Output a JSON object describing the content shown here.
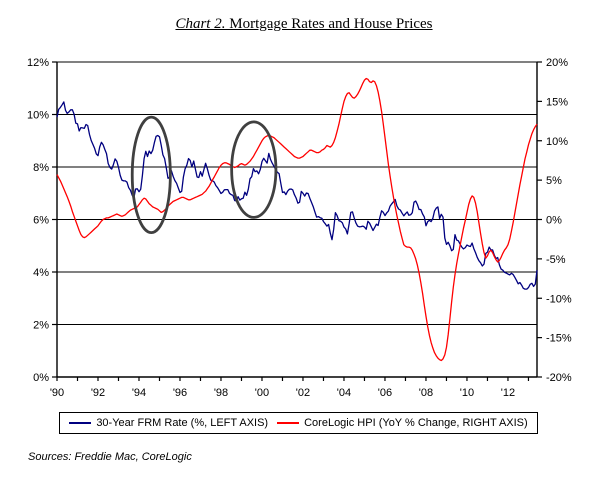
{
  "title": {
    "prefix": "Chart 2.",
    "main": " Mortgage Rates and House Prices"
  },
  "sources": "Sources: Freddie Mac, CoreLogic",
  "legend": {
    "items": [
      {
        "id": "frm",
        "label": "30-Year FRM Rate (%, LEFT AXIS)",
        "color": "#000080"
      },
      {
        "id": "hpi",
        "label": "CoreLogic HPI (YoY % Change, RIGHT AXIS)",
        "color": "#FF0000"
      }
    ]
  },
  "chart_data": {
    "type": "line",
    "title": "Chart 2. Mortgage Rates and House Prices",
    "xlabel": "",
    "ylabel_left": "",
    "ylabel_right": "",
    "grid": true,
    "legend_position": "bottom",
    "x_frequency": "monthly",
    "x_range": [
      "1990-01",
      "2013-06"
    ],
    "x_domain": [
      1990,
      2013.5
    ],
    "x_label_ticks": [
      {
        "year": 1990,
        "label": "'90"
      },
      {
        "year": 1992,
        "label": "'92"
      },
      {
        "year": 1994,
        "label": "'94"
      },
      {
        "year": 1996,
        "label": "'96"
      },
      {
        "year": 1998,
        "label": "'98"
      },
      {
        "year": 2000,
        "label": "'00"
      },
      {
        "year": 2002,
        "label": "'02"
      },
      {
        "year": 2004,
        "label": "'04"
      },
      {
        "year": 2006,
        "label": "'06"
      },
      {
        "year": 2008,
        "label": "'08"
      },
      {
        "year": 2010,
        "label": "'10"
      },
      {
        "year": 2012,
        "label": "'12"
      }
    ],
    "x_minor_tick_step_years": 1,
    "left_axis": {
      "min": 0,
      "max": 12,
      "tick_values": [
        0,
        2,
        4,
        6,
        8,
        10,
        12
      ],
      "tick_labels": [
        "0%",
        "2%",
        "4%",
        "6%",
        "8%",
        "10%",
        "12%"
      ]
    },
    "right_axis": {
      "min": -20,
      "max": 20,
      "tick_values": [
        -20,
        -15,
        -10,
        -5,
        0,
        5,
        10,
        15,
        20
      ],
      "tick_labels": [
        "-20%",
        "-15%",
        "-10%",
        "-5%",
        "0%",
        "5%",
        "10%",
        "15%",
        "20%"
      ]
    },
    "series": [
      {
        "id": "frm",
        "name": "30-Year FRM Rate (%, LEFT AXIS)",
        "axis": "left",
        "color": "#000080",
        "values": [
          9.9,
          10.2,
          10.27,
          10.37,
          10.48,
          10.16,
          10.04,
          10.1,
          10.18,
          10.18,
          10.01,
          9.67,
          9.64,
          9.37,
          9.5,
          9.49,
          9.47,
          9.62,
          9.58,
          9.24,
          9.01,
          8.86,
          8.71,
          8.5,
          8.43,
          8.76,
          8.94,
          8.85,
          8.67,
          8.51,
          8.13,
          7.98,
          7.92,
          8.09,
          8.31,
          8.22,
          7.99,
          7.68,
          7.5,
          7.47,
          7.47,
          7.42,
          7.21,
          7.11,
          6.92,
          6.83,
          7.16,
          7.17,
          7.06,
          7.15,
          7.68,
          8.32,
          8.6,
          8.4,
          8.61,
          8.51,
          8.64,
          8.93,
          9.17,
          9.2,
          9.15,
          8.83,
          8.46,
          8.32,
          7.96,
          7.57,
          7.61,
          7.86,
          7.64,
          7.48,
          7.38,
          7.2,
          7.03,
          7.08,
          7.62,
          7.93,
          8.07,
          8.32,
          8.25,
          8.0,
          8.23,
          7.92,
          7.62,
          7.6,
          7.82,
          7.65,
          7.9,
          8.14,
          7.94,
          7.69,
          7.5,
          7.48,
          7.43,
          7.29,
          7.21,
          7.1,
          6.99,
          7.04,
          7.13,
          7.14,
          7.14,
          7.0,
          6.95,
          6.92,
          6.72,
          6.71,
          6.87,
          6.74,
          6.79,
          6.81,
          7.04,
          6.92,
          7.15,
          7.55,
          7.63,
          7.94,
          7.82,
          7.85,
          7.74,
          7.91,
          8.21,
          8.33,
          8.24,
          8.15,
          8.52,
          8.29,
          8.15,
          8.03,
          7.91,
          7.8,
          7.75,
          7.38,
          7.03,
          7.05,
          6.95,
          7.08,
          7.15,
          7.16,
          7.13,
          6.95,
          6.82,
          6.62,
          6.66,
          7.07,
          7.0,
          6.89,
          7.01,
          6.99,
          6.81,
          6.65,
          6.49,
          6.29,
          6.09,
          6.11,
          6.07,
          6.05,
          5.92,
          5.84,
          5.75,
          5.81,
          5.48,
          5.23,
          5.63,
          6.26,
          6.15,
          5.95,
          5.93,
          5.88,
          5.71,
          5.64,
          5.45,
          5.83,
          6.27,
          6.29,
          6.06,
          5.87,
          5.75,
          5.72,
          5.73,
          5.75,
          5.71,
          5.63,
          5.93,
          5.86,
          5.72,
          5.58,
          5.7,
          5.82,
          5.77,
          6.07,
          6.33,
          6.27,
          6.15,
          6.25,
          6.32,
          6.51,
          6.6,
          6.68,
          6.76,
          6.52,
          6.4,
          6.36,
          6.24,
          6.14,
          6.22,
          6.29,
          6.16,
          6.18,
          6.26,
          6.66,
          6.7,
          6.57,
          6.38,
          6.38,
          6.21,
          6.1,
          5.76,
          5.92,
          5.97,
          5.92,
          6.04,
          6.32,
          6.43,
          6.48,
          6.04,
          6.2,
          6.09,
          5.29,
          5.05,
          5.13,
          5.0,
          4.81,
          4.86,
          5.42,
          5.22,
          5.19,
          5.06,
          4.95,
          4.88,
          4.93,
          5.03,
          4.99,
          4.97,
          5.1,
          4.89,
          4.74,
          4.56,
          4.43,
          4.35,
          4.23,
          4.3,
          4.71,
          4.76,
          4.95,
          4.84,
          4.84,
          4.64,
          4.51,
          4.55,
          4.27,
          4.11,
          4.07,
          3.99,
          3.96,
          3.92,
          3.89,
          3.95,
          3.91,
          3.8,
          3.68,
          3.55,
          3.6,
          3.5,
          3.38,
          3.35,
          3.35,
          3.41,
          3.53,
          3.57,
          3.45,
          3.54,
          4.07
        ]
      },
      {
        "id": "hpi",
        "name": "CoreLogic HPI (YoY % Change, RIGHT AXIS)",
        "axis": "right",
        "color": "#FF0000",
        "values": [
          5.7,
          5.3,
          4.9,
          4.4,
          3.9,
          3.4,
          2.9,
          2.3,
          1.7,
          1.0,
          0.4,
          -0.2,
          -0.8,
          -1.4,
          -1.9,
          -2.2,
          -2.3,
          -2.2,
          -2.0,
          -1.8,
          -1.6,
          -1.4,
          -1.2,
          -1.0,
          -0.8,
          -0.5,
          -0.2,
          0.0,
          0.1,
          0.2,
          0.2,
          0.3,
          0.4,
          0.5,
          0.6,
          0.7,
          0.6,
          0.5,
          0.4,
          0.5,
          0.6,
          0.8,
          1.0,
          1.2,
          1.3,
          1.4,
          1.5,
          1.6,
          1.9,
          2.2,
          2.5,
          2.7,
          2.6,
          2.3,
          2.0,
          1.8,
          1.6,
          1.5,
          1.4,
          1.3,
          1.1,
          0.9,
          1.0,
          1.2,
          1.4,
          1.7,
          1.9,
          2.1,
          2.3,
          2.4,
          2.5,
          2.6,
          2.7,
          2.8,
          2.8,
          2.7,
          2.6,
          2.5,
          2.5,
          2.6,
          2.7,
          2.8,
          2.9,
          3.0,
          3.1,
          3.2,
          3.4,
          3.6,
          3.9,
          4.2,
          4.6,
          5.0,
          5.4,
          5.8,
          6.2,
          6.6,
          6.9,
          7.1,
          7.2,
          7.2,
          7.1,
          7.0,
          6.8,
          6.7,
          6.6,
          6.7,
          6.8,
          7.0,
          7.1,
          7.0,
          6.9,
          7.0,
          7.2,
          7.4,
          7.7,
          8.0,
          8.4,
          8.8,
          9.2,
          9.6,
          10.0,
          10.3,
          10.5,
          10.6,
          10.7,
          10.6,
          10.5,
          10.4,
          10.2,
          10.0,
          9.8,
          9.6,
          9.4,
          9.2,
          9.0,
          8.8,
          8.6,
          8.4,
          8.2,
          8.0,
          7.9,
          7.8,
          7.8,
          7.9,
          8.0,
          8.2,
          8.4,
          8.6,
          8.8,
          8.8,
          8.7,
          8.6,
          8.5,
          8.5,
          8.6,
          8.8,
          8.9,
          9.1,
          9.4,
          9.3,
          9.2,
          9.4,
          9.8,
          10.4,
          11.2,
          12.1,
          13.1,
          14.1,
          15.0,
          15.6,
          16.0,
          16.1,
          15.8,
          15.5,
          15.4,
          15.6,
          15.9,
          16.3,
          16.8,
          17.3,
          17.7,
          17.9,
          17.8,
          17.5,
          17.4,
          17.6,
          17.5,
          17.0,
          16.2,
          15.1,
          13.7,
          12.1,
          10.4,
          8.7,
          7.0,
          5.5,
          4.1,
          2.8,
          1.6,
          0.5,
          -0.5,
          -1.5,
          -2.4,
          -3.2,
          -3.4,
          -3.5,
          -3.5,
          -3.6,
          -3.9,
          -4.4,
          -5.0,
          -5.8,
          -6.8,
          -8.0,
          -9.4,
          -10.9,
          -12.3,
          -13.6,
          -14.7,
          -15.6,
          -16.3,
          -16.9,
          -17.3,
          -17.6,
          -17.8,
          -17.9,
          -17.7,
          -17.2,
          -16.2,
          -14.6,
          -12.6,
          -10.5,
          -8.6,
          -7.0,
          -5.6,
          -4.4,
          -3.3,
          -2.2,
          -1.1,
          -0.1,
          0.9,
          1.9,
          2.6,
          3.0,
          2.8,
          2.1,
          1.0,
          -0.4,
          -1.8,
          -3.1,
          -4.2,
          -4.9,
          -4.6,
          -4.1,
          -3.9,
          -4.2,
          -4.7,
          -5.1,
          -5.4,
          -5.2,
          -4.8,
          -4.3,
          -3.9,
          -3.6,
          -3.2,
          -2.5,
          -1.5,
          -0.4,
          0.8,
          2.0,
          3.2,
          4.4,
          5.5,
          6.6,
          7.7,
          8.6,
          9.5,
          10.2,
          10.9,
          11.4,
          11.8,
          12.1
        ]
      }
    ],
    "annotations": [
      {
        "type": "ellipse",
        "cx_year": 1994.6,
        "cy_left_pct": 7.7,
        "rx_years": 0.93,
        "ry_left_pct": 2.2,
        "color": "#404040"
      },
      {
        "type": "ellipse",
        "cx_year": 1999.6,
        "cy_left_pct": 7.9,
        "rx_years": 1.08,
        "ry_left_pct": 1.82,
        "color": "#404040"
      }
    ]
  }
}
